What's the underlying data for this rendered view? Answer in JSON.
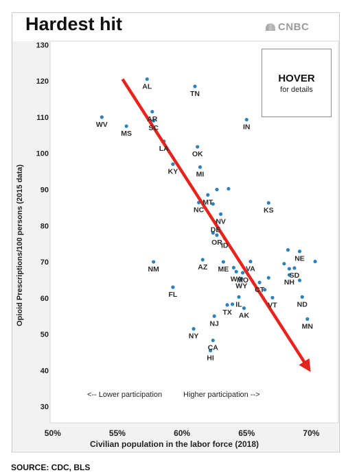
{
  "header": {
    "title": "Hardest hit",
    "brand": "CNBC"
  },
  "hover": {
    "title": "HOVER",
    "subtitle": "for details"
  },
  "footer": {
    "source": "SOURCE: CDC, BLS"
  },
  "colors": {
    "point": "#2b82be",
    "arrow": "#e8231e",
    "plot_bg": "#ffffff",
    "axis_bg": "#f2f2f2"
  },
  "chart_data": {
    "type": "scatter",
    "title": "Hardest hit",
    "xlabel": "Civilian population in the labor force (2018)",
    "ylabel": "Opioid Prescriptions/100 persons (2015 data)",
    "xlim": [
      49.8,
      72.1
    ],
    "ylim": [
      25.5,
      131
    ],
    "xticks": [
      50,
      55,
      60,
      65,
      70
    ],
    "xtick_labels": [
      "50%",
      "55%",
      "60%",
      "65%",
      "70%"
    ],
    "yticks": [
      30,
      40,
      50,
      60,
      70,
      80,
      90,
      100,
      110,
      120,
      130
    ],
    "grid": false,
    "annotations": {
      "left": "<-- Lower participation",
      "right": "Higher participation -->"
    },
    "trend_arrow": {
      "x": [
        55.4,
        69.7
      ],
      "y": [
        120.5,
        41
      ]
    },
    "points": [
      {
        "label": "AL",
        "x": 57.3,
        "y": 120.5
      },
      {
        "label": "TN",
        "x": 61.0,
        "y": 118.5
      },
      {
        "label": "AR",
        "x": 57.7,
        "y": 111.5
      },
      {
        "label": "WV",
        "x": 53.8,
        "y": 110
      },
      {
        "label": "SC",
        "x": 57.8,
        "y": 109
      },
      {
        "label": "IN",
        "x": 65.0,
        "y": 109.3
      },
      {
        "label": "MS",
        "x": 55.7,
        "y": 107.5
      },
      {
        "label": "LA",
        "x": 58.6,
        "y": 103.3
      },
      {
        "label": "OK",
        "x": 61.2,
        "y": 101.8
      },
      {
        "label": "KY",
        "x": 59.3,
        "y": 97
      },
      {
        "label": "MI",
        "x": 61.4,
        "y": 96.2
      },
      {
        "label": "",
        "x": 62.7,
        "y": 90
      },
      {
        "label": "",
        "x": 63.6,
        "y": 90.2
      },
      {
        "label": "MT",
        "x": 62.0,
        "y": 88.5
      },
      {
        "label": "NC",
        "x": 61.3,
        "y": 86.4
      },
      {
        "label": "",
        "x": 62.4,
        "y": 86
      },
      {
        "label": "KS",
        "x": 66.7,
        "y": 86.3
      },
      {
        "label": "NV",
        "x": 63.0,
        "y": 83.2
      },
      {
        "label": "DE",
        "x": 62.6,
        "y": 80.9
      },
      {
        "label": "",
        "x": 62.4,
        "y": 78
      },
      {
        "label": "OR",
        "x": 62.7,
        "y": 77.4
      },
      {
        "label": "ID",
        "x": 63.3,
        "y": 76.5
      },
      {
        "label": "",
        "x": 68.2,
        "y": 73.3
      },
      {
        "label": "NE",
        "x": 69.1,
        "y": 72.9
      },
      {
        "label": "AZ",
        "x": 61.6,
        "y": 70.6
      },
      {
        "label": "ME",
        "x": 63.2,
        "y": 70
      },
      {
        "label": "VA",
        "x": 65.3,
        "y": 70.1
      },
      {
        "label": "NM",
        "x": 57.8,
        "y": 70
      },
      {
        "label": "",
        "x": 70.3,
        "y": 70.1
      },
      {
        "label": "",
        "x": 67.9,
        "y": 69.5
      },
      {
        "label": "SD",
        "x": 68.7,
        "y": 68.3
      },
      {
        "label": "",
        "x": 68.3,
        "y": 68.1
      },
      {
        "label": "",
        "x": 64.0,
        "y": 68.4
      },
      {
        "label": "WA",
        "x": 64.2,
        "y": 67.3
      },
      {
        "label": "MO",
        "x": 64.7,
        "y": 67
      },
      {
        "label": "NH",
        "x": 68.3,
        "y": 66.4
      },
      {
        "label": "",
        "x": 66.7,
        "y": 65.6
      },
      {
        "label": "WY",
        "x": 64.6,
        "y": 65.4
      },
      {
        "label": "",
        "x": 69.1,
        "y": 64.9
      },
      {
        "label": "CT",
        "x": 66.0,
        "y": 64.3
      },
      {
        "label": "FL",
        "x": 59.3,
        "y": 63
      },
      {
        "label": "",
        "x": 66.4,
        "y": 62.3
      },
      {
        "label": "IL",
        "x": 64.4,
        "y": 60.3
      },
      {
        "label": "VT",
        "x": 67.0,
        "y": 60.1
      },
      {
        "label": "ND",
        "x": 69.3,
        "y": 60.3
      },
      {
        "label": "",
        "x": 63.9,
        "y": 58.3
      },
      {
        "label": "TX",
        "x": 63.5,
        "y": 58.1
      },
      {
        "label": "AK",
        "x": 64.8,
        "y": 57.2
      },
      {
        "label": "NJ",
        "x": 62.5,
        "y": 55
      },
      {
        "label": "MN",
        "x": 69.7,
        "y": 54.2
      },
      {
        "label": "NY",
        "x": 60.9,
        "y": 51.5
      },
      {
        "label": "CA",
        "x": 62.4,
        "y": 48.3
      },
      {
        "label": "HI",
        "x": 62.2,
        "y": 45.5
      }
    ]
  }
}
